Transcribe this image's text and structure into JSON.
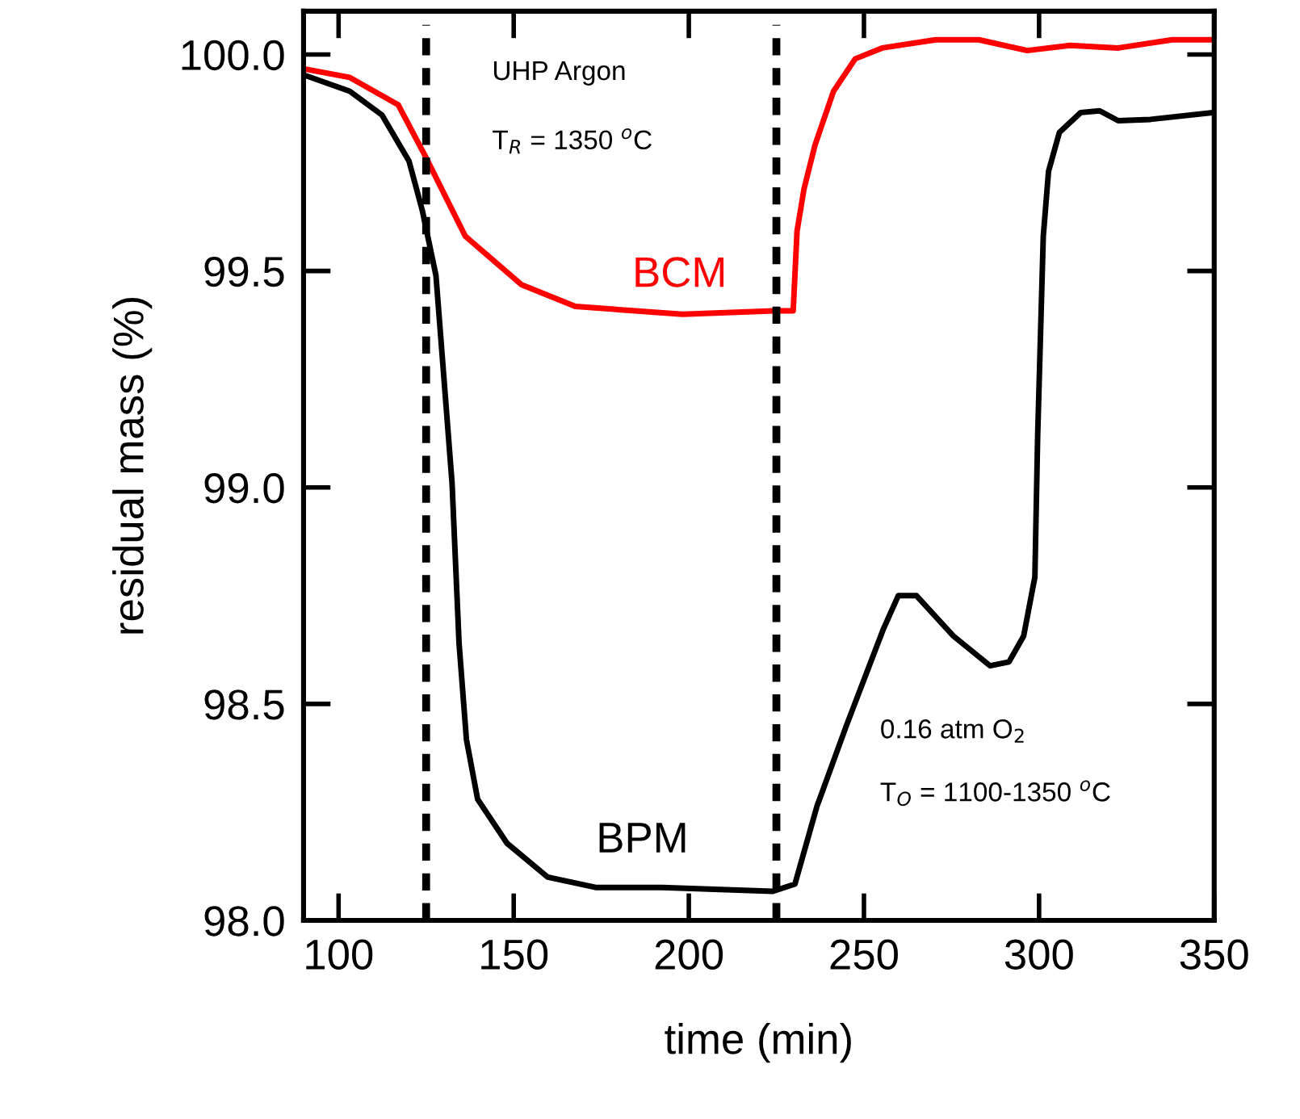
{
  "chart_data": {
    "type": "line",
    "xlabel": "time (min)",
    "ylabel": "residual mass (%)",
    "xlim": [
      90,
      350
    ],
    "ylim": [
      98.0,
      100.1
    ],
    "xticks": [
      100,
      150,
      200,
      250,
      300,
      350
    ],
    "yticks": [
      {
        "value": 98.0,
        "label": "98.0"
      },
      {
        "value": 98.5,
        "label": "98.5"
      },
      {
        "value": 99.0,
        "label": "99.0"
      },
      {
        "value": 99.5,
        "label": "99.5"
      },
      {
        "value": 100.0,
        "label": "100.0"
      }
    ],
    "grid": false,
    "legend": false,
    "line_style": "solid",
    "marker": "none",
    "series": [
      {
        "name": "BCM",
        "color": "#ff0000",
        "x": [
          90,
          103.2,
          117,
          124.7,
          136.2,
          152.3,
          167.6,
          198.2,
          224.4,
          229.8,
          230.9,
          232.9,
          236,
          241.3,
          247.5,
          255.2,
          270.5,
          282.8,
          296.6,
          308.8,
          322.6,
          338,
          350
        ],
        "values": [
          99.967,
          99.947,
          99.884,
          99.766,
          99.58,
          99.468,
          99.418,
          99.4,
          99.408,
          99.408,
          99.592,
          99.69,
          99.79,
          99.915,
          99.99,
          100.015,
          100.034,
          100.034,
          100.009,
          100.021,
          100.015,
          100.034,
          100.034
        ]
      },
      {
        "name": "BPM",
        "color": "#000000",
        "x": [
          90,
          103.2,
          112.4,
          120.1,
          123.9,
          127.8,
          132.4,
          134.4,
          136.5,
          139.7,
          148.1,
          159.7,
          173.4,
          192.4,
          224,
          230.3,
          236.6,
          245,
          255.6,
          259.8,
          265,
          275.5,
          286,
          291.4,
          295.6,
          298.8,
          299.6,
          301.2,
          302.7,
          305.8,
          311.9,
          317.3,
          322.6,
          331.8,
          350
        ],
        "values": [
          99.953,
          99.915,
          99.86,
          99.754,
          99.64,
          99.49,
          99.01,
          98.64,
          98.418,
          98.28,
          98.178,
          98.1,
          98.076,
          98.076,
          98.067,
          98.084,
          98.264,
          98.45,
          98.674,
          98.75,
          98.75,
          98.657,
          98.588,
          98.597,
          98.657,
          98.793,
          99.12,
          99.58,
          99.73,
          99.82,
          99.866,
          99.87,
          99.847,
          99.85,
          99.866
        ]
      }
    ],
    "ref_lines": [
      {
        "axis": "x",
        "value": 125,
        "color": "#000000",
        "line_style": "dashed"
      },
      {
        "axis": "x",
        "value": 225,
        "color": "#000000",
        "line_style": "dashed"
      }
    ],
    "annotations": [
      "UHP Argon",
      "T$_{R}$ = 1350 $^{o}$C",
      "0.16 atm O$_{2}$",
      "T$_{O}$ = 1100-1350 $^{o}$C"
    ]
  }
}
